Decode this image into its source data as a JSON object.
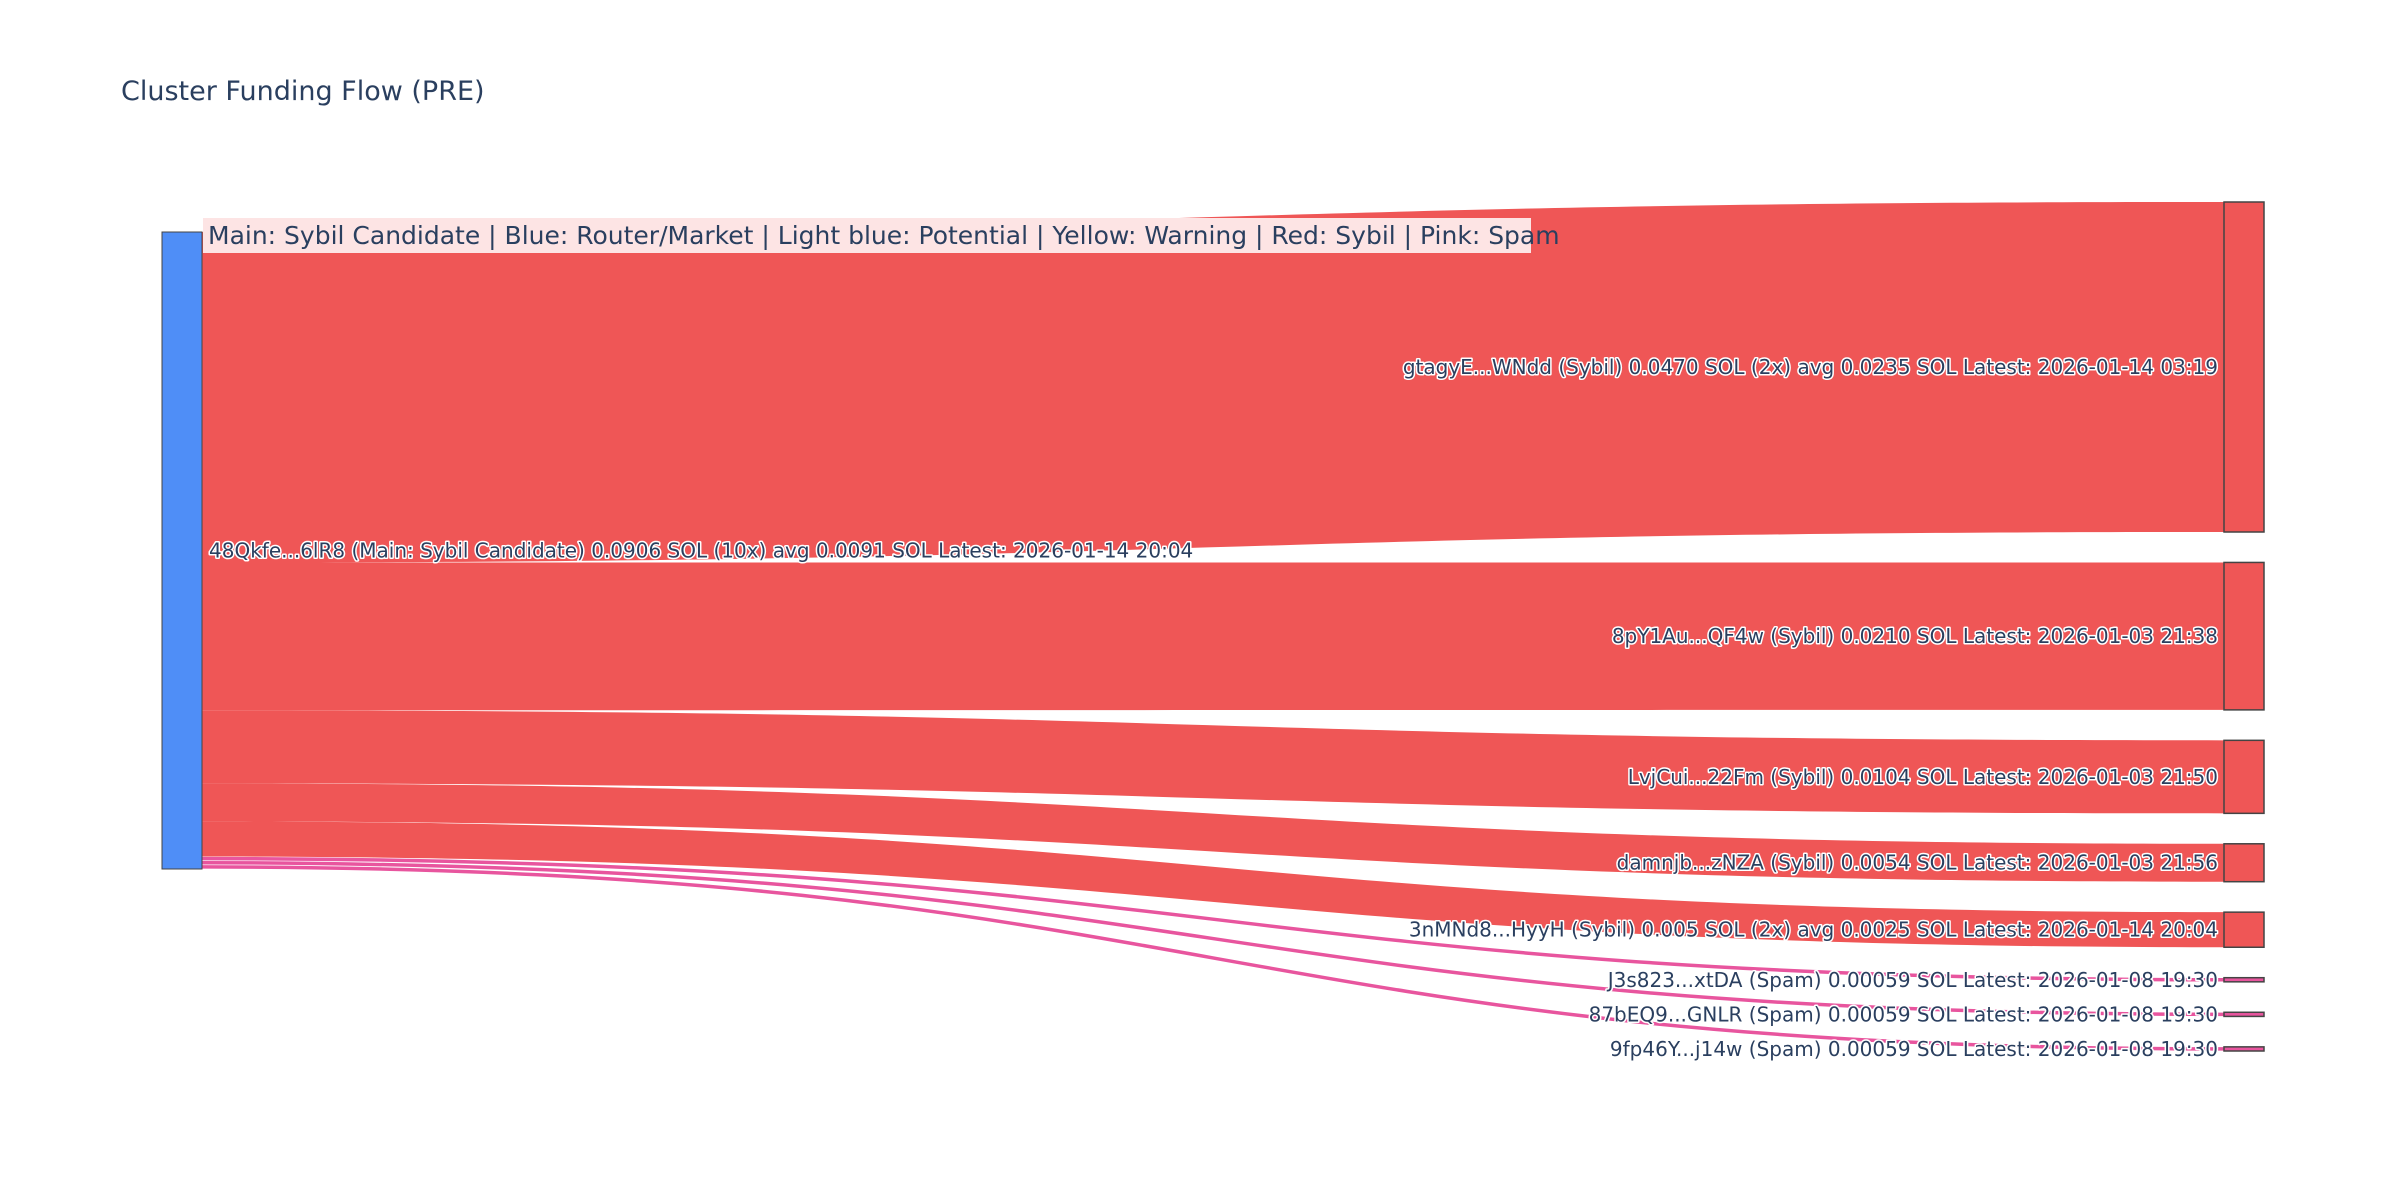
{
  "chart_data": {
    "type": "sankey",
    "title": "Cluster Funding Flow (PRE)",
    "legend_note": "Main: Sybil Candidate  |  Blue: Router/Market | Light blue: Potential | Yellow: Warning | Red: Sybil | Pink: Spam",
    "colors": {
      "main": "#4f8ef7",
      "sybil": "#ef5656",
      "spam": "#e8559e",
      "node_border": "#444444",
      "legend_bg": "#fde4e4"
    },
    "source": {
      "label": "48Qkfe...6lR8 (Main: Sybil Candidate) 0.0906 SOL (10x) avg 0.0091 SOL Latest: 2026-01-14 20:04",
      "category": "main",
      "total": 0.0906
    },
    "targets": [
      {
        "label": "gtagyE...WNdd (Sybil) 0.0470 SOL (2x) avg 0.0235 SOL Latest: 2026-01-14 03:19",
        "value": 0.047,
        "category": "sybil"
      },
      {
        "label": "8pY1Au...QF4w (Sybil) 0.0210 SOL Latest: 2026-01-03 21:38",
        "value": 0.021,
        "category": "sybil"
      },
      {
        "label": "LvjCui...22Fm (Sybil) 0.0104 SOL Latest: 2026-01-03 21:50",
        "value": 0.0104,
        "category": "sybil"
      },
      {
        "label": "damnjb...zNZA (Sybil) 0.0054 SOL Latest: 2026-01-03 21:56",
        "value": 0.0054,
        "category": "sybil"
      },
      {
        "label": "3nMNd8...HyyH (Sybil) 0.005 SOL (2x) avg 0.0025 SOL Latest: 2026-01-14 20:04",
        "value": 0.005,
        "category": "sybil"
      },
      {
        "label": "J3s823...xtDA (Spam) 0.00059 SOL Latest: 2026-01-08 19:30",
        "value": 0.00059,
        "category": "spam"
      },
      {
        "label": "87bEQ9...GNLR (Spam) 0.00059 SOL Latest: 2026-01-08 19:30",
        "value": 0.00059,
        "category": "spam"
      },
      {
        "label": "9fp46Y...j14w (Spam) 0.00059 SOL Latest: 2026-01-08 19:30",
        "value": 0.00059,
        "category": "spam"
      }
    ]
  }
}
